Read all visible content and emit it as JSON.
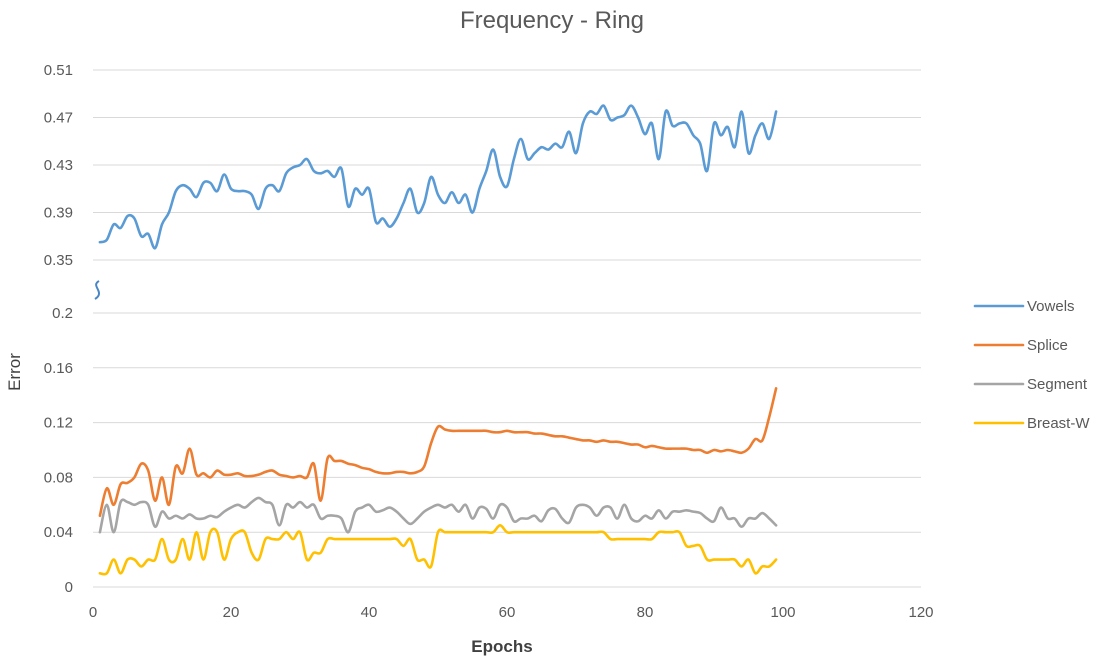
{
  "chart_data": {
    "type": "line",
    "title": "Frequency - Ring",
    "xlabel": "Epochs",
    "ylabel": "Error",
    "xlim": [
      0,
      120
    ],
    "x_ticks": [
      "0",
      "20",
      "40",
      "60",
      "80",
      "100",
      "120"
    ],
    "upper_axis": {
      "ylim": [
        0.35,
        0.51
      ],
      "ticks": [
        "0.35",
        "0.39",
        "0.43",
        "0.47",
        "0.51"
      ]
    },
    "lower_axis": {
      "ylim": [
        0,
        0.2
      ],
      "ticks": [
        "0",
        "0.04",
        "0.08",
        "0.12",
        "0.16",
        "0.2"
      ]
    },
    "axis_break": true,
    "grid": true,
    "legend_position": "right",
    "series": [
      {
        "name": "Vowels",
        "color": "#5b9bd5",
        "axis": "upper",
        "x": [
          1,
          2,
          3,
          4,
          5,
          6,
          7,
          8,
          9,
          10,
          11,
          12,
          13,
          14,
          15,
          16,
          17,
          18,
          19,
          20,
          21,
          22,
          23,
          24,
          25,
          26,
          27,
          28,
          29,
          30,
          31,
          32,
          33,
          34,
          35,
          36,
          37,
          38,
          39,
          40,
          41,
          42,
          43,
          44,
          45,
          46,
          47,
          48,
          49,
          50,
          51,
          52,
          53,
          54,
          55,
          56,
          57,
          58,
          59,
          60,
          61,
          62,
          63,
          64,
          65,
          66,
          67,
          68,
          69,
          70,
          71,
          72,
          73,
          74,
          75,
          76,
          77,
          78,
          79,
          80,
          81,
          82,
          83,
          84,
          85,
          86,
          87,
          88,
          89,
          90,
          91,
          92,
          93,
          94,
          95,
          96,
          97,
          98,
          99
        ],
        "values": [
          0.365,
          0.367,
          0.38,
          0.377,
          0.387,
          0.385,
          0.37,
          0.372,
          0.36,
          0.38,
          0.39,
          0.408,
          0.413,
          0.41,
          0.403,
          0.415,
          0.415,
          0.408,
          0.422,
          0.41,
          0.408,
          0.408,
          0.405,
          0.393,
          0.41,
          0.413,
          0.408,
          0.423,
          0.428,
          0.43,
          0.435,
          0.425,
          0.423,
          0.425,
          0.42,
          0.427,
          0.395,
          0.41,
          0.405,
          0.41,
          0.382,
          0.385,
          0.378,
          0.385,
          0.398,
          0.41,
          0.39,
          0.398,
          0.42,
          0.405,
          0.398,
          0.407,
          0.398,
          0.405,
          0.39,
          0.41,
          0.425,
          0.443,
          0.42,
          0.412,
          0.435,
          0.452,
          0.435,
          0.44,
          0.445,
          0.443,
          0.448,
          0.445,
          0.458,
          0.44,
          0.465,
          0.475,
          0.473,
          0.48,
          0.468,
          0.47,
          0.472,
          0.48,
          0.47,
          0.456,
          0.465,
          0.435,
          0.475,
          0.463,
          0.465,
          0.465,
          0.455,
          0.448,
          0.425,
          0.465,
          0.455,
          0.462,
          0.445,
          0.475,
          0.44,
          0.455,
          0.465,
          0.452,
          0.475
        ]
      },
      {
        "name": "Splice",
        "color": "#ed7d31",
        "axis": "lower",
        "x": [
          1,
          2,
          3,
          4,
          5,
          6,
          7,
          8,
          9,
          10,
          11,
          12,
          13,
          14,
          15,
          16,
          17,
          18,
          19,
          20,
          21,
          22,
          23,
          24,
          25,
          26,
          27,
          28,
          29,
          30,
          31,
          32,
          33,
          34,
          35,
          36,
          37,
          38,
          39,
          40,
          41,
          42,
          43,
          44,
          45,
          46,
          47,
          48,
          49,
          50,
          51,
          52,
          53,
          54,
          55,
          56,
          57,
          58,
          59,
          60,
          61,
          62,
          63,
          64,
          65,
          66,
          67,
          68,
          69,
          70,
          71,
          72,
          73,
          74,
          75,
          76,
          77,
          78,
          79,
          80,
          81,
          82,
          83,
          84,
          85,
          86,
          87,
          88,
          89,
          90,
          91,
          92,
          93,
          94,
          95,
          96,
          97,
          98,
          99
        ],
        "values": [
          0.052,
          0.072,
          0.06,
          0.075,
          0.076,
          0.08,
          0.09,
          0.085,
          0.063,
          0.08,
          0.06,
          0.088,
          0.083,
          0.101,
          0.082,
          0.083,
          0.08,
          0.085,
          0.082,
          0.082,
          0.083,
          0.081,
          0.081,
          0.082,
          0.084,
          0.085,
          0.082,
          0.081,
          0.08,
          0.081,
          0.08,
          0.09,
          0.063,
          0.094,
          0.092,
          0.092,
          0.09,
          0.089,
          0.087,
          0.086,
          0.084,
          0.083,
          0.083,
          0.084,
          0.084,
          0.083,
          0.084,
          0.088,
          0.105,
          0.117,
          0.115,
          0.114,
          0.114,
          0.114,
          0.114,
          0.114,
          0.114,
          0.113,
          0.113,
          0.114,
          0.113,
          0.113,
          0.113,
          0.112,
          0.112,
          0.111,
          0.11,
          0.11,
          0.109,
          0.108,
          0.107,
          0.107,
          0.106,
          0.107,
          0.106,
          0.106,
          0.105,
          0.104,
          0.104,
          0.102,
          0.103,
          0.102,
          0.101,
          0.101,
          0.101,
          0.101,
          0.1,
          0.1,
          0.098,
          0.1,
          0.099,
          0.1,
          0.099,
          0.098,
          0.101,
          0.108,
          0.107,
          0.124,
          0.145
        ]
      },
      {
        "name": "Segment",
        "color": "#a5a5a5",
        "axis": "lower",
        "x": [
          1,
          2,
          3,
          4,
          5,
          6,
          7,
          8,
          9,
          10,
          11,
          12,
          13,
          14,
          15,
          16,
          17,
          18,
          19,
          20,
          21,
          22,
          23,
          24,
          25,
          26,
          27,
          28,
          29,
          30,
          31,
          32,
          33,
          34,
          35,
          36,
          37,
          38,
          39,
          40,
          41,
          42,
          43,
          44,
          45,
          46,
          47,
          48,
          49,
          50,
          51,
          52,
          53,
          54,
          55,
          56,
          57,
          58,
          59,
          60,
          61,
          62,
          63,
          64,
          65,
          66,
          67,
          68,
          69,
          70,
          71,
          72,
          73,
          74,
          75,
          76,
          77,
          78,
          79,
          80,
          81,
          82,
          83,
          84,
          85,
          86,
          87,
          88,
          89,
          90,
          91,
          92,
          93,
          94,
          95,
          96,
          97,
          98,
          99
        ],
        "values": [
          0.04,
          0.06,
          0.04,
          0.062,
          0.062,
          0.06,
          0.062,
          0.06,
          0.044,
          0.055,
          0.05,
          0.052,
          0.05,
          0.053,
          0.05,
          0.05,
          0.052,
          0.051,
          0.055,
          0.058,
          0.06,
          0.058,
          0.062,
          0.065,
          0.062,
          0.06,
          0.045,
          0.06,
          0.058,
          0.062,
          0.058,
          0.06,
          0.05,
          0.052,
          0.052,
          0.05,
          0.04,
          0.055,
          0.058,
          0.06,
          0.055,
          0.056,
          0.058,
          0.055,
          0.05,
          0.046,
          0.05,
          0.055,
          0.058,
          0.06,
          0.058,
          0.06,
          0.055,
          0.06,
          0.05,
          0.058,
          0.057,
          0.05,
          0.06,
          0.058,
          0.048,
          0.05,
          0.05,
          0.052,
          0.048,
          0.056,
          0.057,
          0.05,
          0.047,
          0.058,
          0.06,
          0.058,
          0.052,
          0.058,
          0.058,
          0.05,
          0.06,
          0.05,
          0.048,
          0.052,
          0.05,
          0.056,
          0.05,
          0.055,
          0.055,
          0.056,
          0.055,
          0.054,
          0.05,
          0.048,
          0.058,
          0.05,
          0.05,
          0.044,
          0.05,
          0.05,
          0.054,
          0.05,
          0.045
        ]
      },
      {
        "name": "Breast-W",
        "color": "#ffc000",
        "axis": "lower",
        "x": [
          1,
          2,
          3,
          4,
          5,
          6,
          7,
          8,
          9,
          10,
          11,
          12,
          13,
          14,
          15,
          16,
          17,
          18,
          19,
          20,
          21,
          22,
          23,
          24,
          25,
          26,
          27,
          28,
          29,
          30,
          31,
          32,
          33,
          34,
          35,
          36,
          37,
          38,
          39,
          40,
          41,
          42,
          43,
          44,
          45,
          46,
          47,
          48,
          49,
          50,
          51,
          52,
          53,
          54,
          55,
          56,
          57,
          58,
          59,
          60,
          61,
          62,
          63,
          64,
          65,
          66,
          67,
          68,
          69,
          70,
          71,
          72,
          73,
          74,
          75,
          76,
          77,
          78,
          79,
          80,
          81,
          82,
          83,
          84,
          85,
          86,
          87,
          88,
          89,
          90,
          91,
          92,
          93,
          94,
          95,
          96,
          97,
          98,
          99
        ],
        "values": [
          0.01,
          0.01,
          0.02,
          0.01,
          0.02,
          0.02,
          0.015,
          0.02,
          0.02,
          0.035,
          0.02,
          0.02,
          0.035,
          0.02,
          0.04,
          0.02,
          0.04,
          0.04,
          0.02,
          0.035,
          0.04,
          0.04,
          0.025,
          0.02,
          0.035,
          0.035,
          0.035,
          0.04,
          0.035,
          0.04,
          0.02,
          0.025,
          0.025,
          0.035,
          0.035,
          0.035,
          0.035,
          0.035,
          0.035,
          0.035,
          0.035,
          0.035,
          0.035,
          0.035,
          0.03,
          0.035,
          0.02,
          0.02,
          0.015,
          0.04,
          0.04,
          0.04,
          0.04,
          0.04,
          0.04,
          0.04,
          0.04,
          0.04,
          0.045,
          0.04,
          0.04,
          0.04,
          0.04,
          0.04,
          0.04,
          0.04,
          0.04,
          0.04,
          0.04,
          0.04,
          0.04,
          0.04,
          0.04,
          0.04,
          0.035,
          0.035,
          0.035,
          0.035,
          0.035,
          0.035,
          0.035,
          0.04,
          0.04,
          0.04,
          0.04,
          0.03,
          0.03,
          0.03,
          0.02,
          0.02,
          0.02,
          0.02,
          0.02,
          0.015,
          0.02,
          0.01,
          0.015,
          0.015,
          0.02
        ]
      }
    ]
  }
}
